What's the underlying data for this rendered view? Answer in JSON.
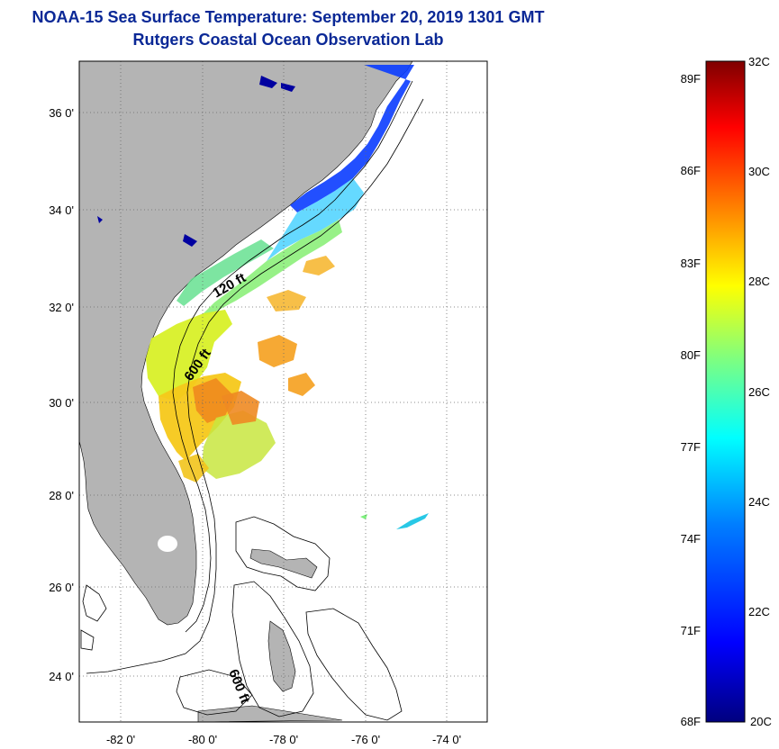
{
  "title": {
    "line1": "NOAA-15 Sea Surface Temperature:  September 20, 2019 1301 GMT",
    "line2": "Rutgers Coastal Ocean Observation Lab"
  },
  "map": {
    "lat_ticks": [
      "36 0'",
      "34 0'",
      "32 0'",
      "30 0'",
      "28 0'",
      "26 0'",
      "24 0'"
    ],
    "lon_ticks": [
      "-82 0'",
      "-80 0'",
      "-78 0'",
      "-76 0'",
      "-74 0'"
    ],
    "isobath_labels": [
      "120 ft",
      "600 ft",
      "600 ft"
    ],
    "land_color": "#b4b4b4",
    "grid": true
  },
  "colorbar": {
    "fahrenheit_labels": [
      "89F",
      "86F",
      "83F",
      "80F",
      "77F",
      "74F",
      "71F",
      "68F"
    ],
    "celsius_labels": [
      "32C",
      "30C",
      "28C",
      "26C",
      "24C",
      "22C",
      "20C"
    ],
    "bottom_celsius": "20C",
    "colors": [
      "#00007f",
      "#0000ff",
      "#007fff",
      "#00ffff",
      "#7fff7f",
      "#ffff00",
      "#ff7f00",
      "#ff0000",
      "#7f0000"
    ]
  }
}
